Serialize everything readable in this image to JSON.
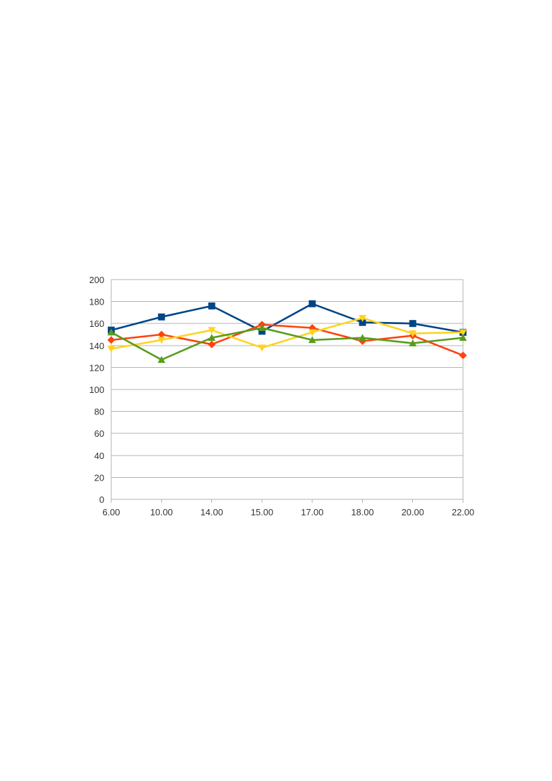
{
  "chart_data": {
    "type": "line",
    "title": "",
    "xlabel": "",
    "ylabel": "",
    "categories": [
      "6.00",
      "10.00",
      "14.00",
      "15.00",
      "17.00",
      "18.00",
      "20.00",
      "22.00"
    ],
    "ylim": [
      0,
      200
    ],
    "y_ticks": [
      "0",
      "20",
      "40",
      "60",
      "80",
      "100",
      "120",
      "140",
      "160",
      "180",
      "200"
    ],
    "grid": true,
    "legend": "none",
    "series": [
      {
        "values": [
          154,
          166,
          176,
          153,
          178,
          161,
          160,
          152
        ],
        "color": "#004586",
        "marker": "square"
      },
      {
        "values": [
          145,
          150,
          141,
          159,
          156,
          144,
          149,
          131
        ],
        "color": "#ff420e",
        "marker": "diamond"
      },
      {
        "values": [
          137,
          145,
          154,
          138,
          152,
          165,
          151,
          152
        ],
        "color": "#ffd320",
        "marker": "triangle-down"
      },
      {
        "values": [
          152,
          127,
          147,
          156,
          145,
          147,
          142,
          147
        ],
        "color": "#579d1c",
        "marker": "triangle-up"
      }
    ]
  }
}
